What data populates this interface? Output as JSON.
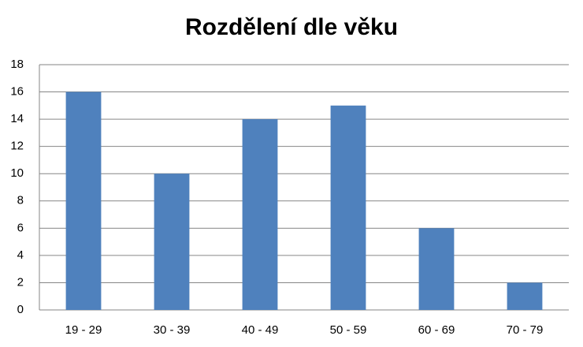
{
  "chart_data": {
    "type": "bar",
    "title": "Rozdělení dle věku",
    "categories": [
      "19 - 29",
      "30 - 39",
      "40 - 49",
      "50 - 59",
      "60 - 69",
      "70 - 79"
    ],
    "values": [
      16,
      10,
      14,
      15,
      6,
      2
    ],
    "color": "#4f81bd",
    "ylim": [
      0,
      18
    ],
    "yticks": [
      0,
      2,
      4,
      6,
      8,
      10,
      12,
      14,
      16,
      18
    ],
    "grid": true
  }
}
